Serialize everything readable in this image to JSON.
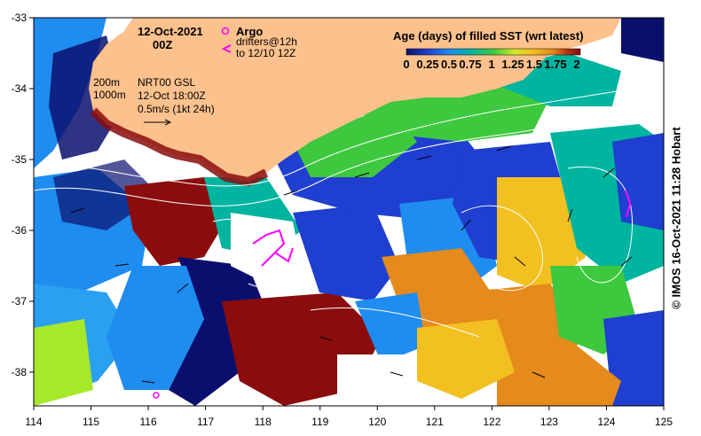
{
  "map": {
    "title_date": "12-Oct-2021",
    "title_time": "00Z",
    "legend": {
      "argo_label": "Argo",
      "drifters_label": "drifters@12h",
      "drifters_sub": "to 12/10 12Z",
      "colorbar_title": "Age (days) of filled SST (wrt latest)",
      "colorbar_ticks": [
        "0",
        "0.25",
        "0.5",
        "0.75",
        "1",
        "1.25",
        "1.5",
        "1.75",
        "2"
      ],
      "colorbar_colors": [
        "#0a0f6e",
        "#1f3fd0",
        "#1f8cf0",
        "#00b4a0",
        "#3ec83e",
        "#d2e62a",
        "#f2c020",
        "#e58a1c",
        "#b03010",
        "#8a0c0c"
      ]
    },
    "bathymetry": {
      "label_200": "200m",
      "label_1000": "1000m"
    },
    "current_info": {
      "line1": "NRT00 GSL",
      "line2": "12-Oct 18:00Z",
      "line3": "0.5m/s (1kt 24h)"
    },
    "x_ticks": [
      "114",
      "115",
      "116",
      "117",
      "118",
      "119",
      "120",
      "121",
      "122",
      "123",
      "124",
      "125"
    ],
    "y_ticks": [
      "-33",
      "-34",
      "-35",
      "-36",
      "-37",
      "-38"
    ],
    "credit": "© IMOS 16-Oct-2021 11:28 Hobart",
    "colors": {
      "land": "#fcc18c",
      "argo": "#ff00ff",
      "contour": "#ffffff",
      "no_data": "#ffffff"
    }
  }
}
